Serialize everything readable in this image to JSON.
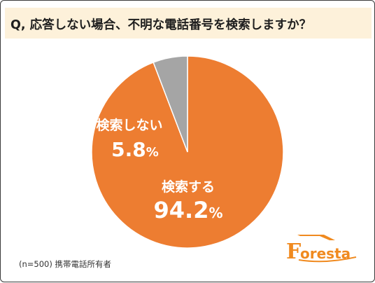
{
  "title": "Q, 応答しない場合、不明な電話番号を検索しますか？",
  "note": "(n=500) 携帯電話所有者",
  "logo_text": "Foresta",
  "colors": {
    "slice_main": "#ed7d31",
    "slice_other": "#a5a5a5",
    "title_band": "#fdf1da",
    "logo": "#f08a1f"
  },
  "chart_data": {
    "type": "pie",
    "title": "Q, 応答しない場合、不明な電話番号を検索しますか？",
    "slices": [
      {
        "label": "検索する",
        "value": 94.2,
        "value_label": "94.2",
        "color": "#ed7d31"
      },
      {
        "label": "検索しない",
        "value": 5.8,
        "value_label": "5.8",
        "color": "#a5a5a5"
      }
    ],
    "unit": "%",
    "start_angle_deg": 0,
    "direction": "clockwise",
    "legend": "none"
  }
}
